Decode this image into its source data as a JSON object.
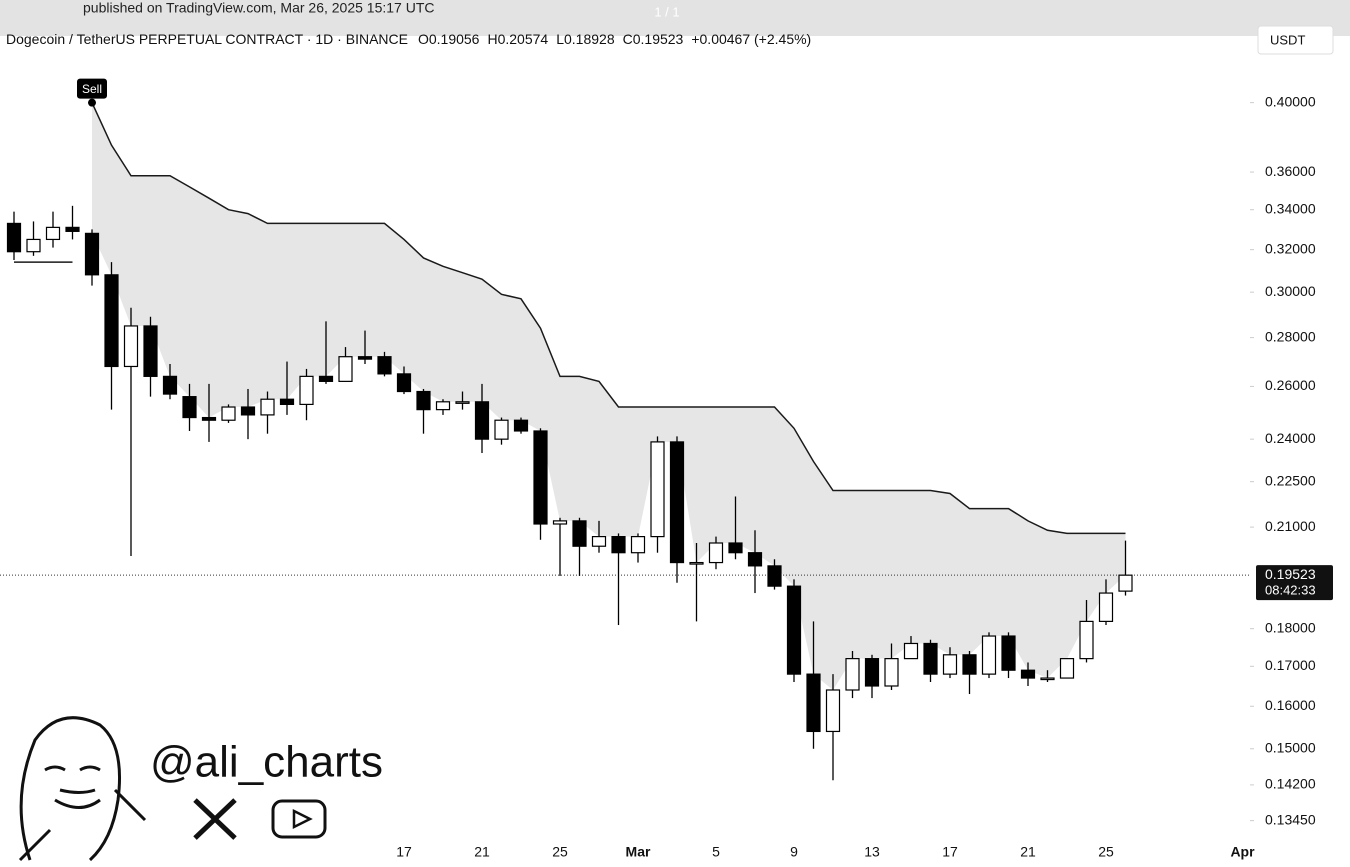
{
  "published": "published on TradingView.com, Mar 26, 2025 15:17 UTC",
  "page_counter": "1 / 1",
  "chart_data": {
    "type": "candlestick",
    "title": "Dogecoin / TetherUS PERPETUAL CONTRACT · 1D · BINANCE",
    "ohlc_letters": [
      "O",
      "H",
      "L",
      "C"
    ],
    "change": "+0.00467 (+2.45%)",
    "currency": "USDT",
    "countdown": "08:42:33",
    "signal_label": "Sell",
    "watermark": "@ali_charts",
    "log_scale": true,
    "categories": [
      null,
      null,
      null,
      null,
      null,
      null,
      null,
      null,
      null,
      null,
      null,
      null,
      null,
      null,
      null,
      null,
      null,
      null,
      null,
      null,
      "17",
      null,
      null,
      null,
      "21",
      null,
      null,
      null,
      "25",
      null,
      null,
      null,
      "Mar",
      null,
      null,
      null,
      "5",
      null,
      null,
      null,
      "9",
      null,
      null,
      null,
      "13",
      null,
      null,
      null,
      "17",
      null,
      null,
      null,
      "21",
      null,
      null,
      null,
      "25",
      null,
      null,
      null,
      null,
      null,
      null,
      "Apr"
    ],
    "open": [
      0.333,
      0.319,
      0.325,
      0.331,
      0.328,
      0.308,
      0.268,
      0.285,
      0.264,
      0.256,
      0.248,
      0.247,
      0.252,
      0.249,
      0.255,
      0.253,
      0.264,
      0.262,
      0.272,
      0.272,
      0.265,
      0.258,
      0.251,
      0.254,
      0.254,
      0.24,
      0.247,
      0.243,
      0.211,
      0.212,
      0.204,
      0.207,
      0.202,
      0.207,
      0.239,
      0.199,
      0.199,
      0.205,
      0.202,
      0.198,
      0.192,
      0.168,
      0.154,
      0.164,
      0.172,
      0.165,
      0.172,
      0.176,
      0.168,
      0.173,
      0.168,
      0.178,
      0.169,
      0.167,
      0.167,
      0.172,
      0.182,
      0.19056,
      null,
      null,
      null,
      null,
      null,
      null
    ],
    "high": [
      0.339,
      0.334,
      0.339,
      0.342,
      0.33,
      0.314,
      0.293,
      0.289,
      0.269,
      0.261,
      0.261,
      0.253,
      0.259,
      0.258,
      0.27,
      0.267,
      0.287,
      0.276,
      0.283,
      0.274,
      0.268,
      0.259,
      0.255,
      0.258,
      0.261,
      0.248,
      0.248,
      0.244,
      0.213,
      0.213,
      0.212,
      0.208,
      0.208,
      0.241,
      0.241,
      0.205,
      0.207,
      0.22,
      0.209,
      0.2,
      0.194,
      0.182,
      0.168,
      0.174,
      0.173,
      0.176,
      0.178,
      0.177,
      0.175,
      0.174,
      0.179,
      0.179,
      0.171,
      0.169,
      0.172,
      0.188,
      0.194,
      0.20574,
      null,
      null,
      null,
      null,
      null,
      null
    ],
    "low": [
      0.315,
      0.317,
      0.321,
      0.325,
      0.303,
      0.251,
      0.201,
      0.256,
      0.255,
      0.243,
      0.239,
      0.246,
      0.24,
      0.242,
      0.249,
      0.247,
      0.261,
      0.262,
      0.269,
      0.264,
      0.257,
      0.242,
      0.249,
      0.251,
      0.235,
      0.238,
      0.242,
      0.206,
      0.195,
      0.195,
      0.202,
      0.181,
      0.199,
      0.202,
      0.193,
      0.182,
      0.197,
      0.2,
      0.19,
      0.191,
      0.166,
      0.15,
      0.143,
      0.162,
      0.162,
      0.164,
      0.172,
      0.166,
      0.167,
      0.163,
      0.167,
      0.167,
      0.165,
      0.166,
      0.167,
      0.171,
      0.181,
      0.18928,
      null,
      null,
      null,
      null,
      null,
      null
    ],
    "close": [
      0.319,
      0.325,
      0.331,
      0.329,
      0.308,
      0.268,
      0.285,
      0.264,
      0.257,
      0.248,
      0.247,
      0.252,
      0.249,
      0.255,
      0.253,
      0.264,
      0.262,
      0.272,
      0.271,
      0.265,
      0.258,
      0.251,
      0.254,
      0.254,
      0.24,
      0.247,
      0.243,
      0.211,
      0.212,
      0.204,
      0.207,
      0.202,
      0.207,
      0.239,
      0.199,
      0.199,
      0.205,
      0.202,
      0.198,
      0.192,
      0.168,
      0.154,
      0.164,
      0.172,
      0.165,
      0.172,
      0.176,
      0.168,
      0.173,
      0.168,
      0.178,
      0.169,
      0.167,
      0.167,
      0.172,
      0.182,
      0.19,
      0.19523,
      null,
      null,
      null,
      null,
      null,
      null
    ],
    "support_line": [
      0.314,
      0.314,
      0.314,
      0.314,
      null,
      null,
      null,
      null,
      null,
      null,
      null,
      null,
      null,
      null,
      null,
      null,
      null,
      null,
      null,
      null,
      null,
      null,
      null,
      null,
      null,
      null,
      null,
      null,
      null,
      null,
      null,
      null,
      null,
      null,
      null,
      null,
      null,
      null,
      null,
      null,
      null,
      null,
      null,
      null,
      null,
      null,
      null,
      null,
      null,
      null,
      null,
      null,
      null,
      null,
      null,
      null,
      null,
      null,
      null,
      null,
      null,
      null,
      null,
      null
    ],
    "resistance_line": [
      null,
      null,
      null,
      null,
      0.4,
      0.375,
      0.358,
      0.358,
      0.358,
      0.352,
      0.346,
      0.34,
      0.338,
      0.333,
      0.333,
      0.333,
      0.333,
      0.333,
      0.333,
      0.333,
      0.325,
      0.316,
      0.312,
      0.309,
      0.306,
      0.299,
      0.297,
      0.284,
      0.264,
      0.264,
      0.262,
      0.252,
      0.252,
      0.252,
      0.252,
      0.252,
      0.252,
      0.252,
      0.252,
      0.252,
      0.244,
      0.232,
      0.222,
      0.222,
      0.222,
      0.222,
      0.222,
      0.222,
      0.221,
      0.216,
      0.216,
      0.216,
      0.212,
      0.209,
      0.208,
      0.208,
      0.208,
      0.208,
      null,
      null,
      null,
      null,
      null,
      null
    ],
    "up_color": "#ffffff",
    "down_color": "#000000",
    "line_color": "#1a1a1a",
    "fill_color": "#e6e6e6",
    "ylim": [
      0.131,
      0.43
    ],
    "yticks": [
      {
        "value": 0.4,
        "label": "0.40000"
      },
      {
        "value": 0.36,
        "label": "0.36000"
      },
      {
        "value": 0.34,
        "label": "0.34000"
      },
      {
        "value": 0.32,
        "label": "0.32000"
      },
      {
        "value": 0.3,
        "label": "0.30000"
      },
      {
        "value": 0.28,
        "label": "0.28000"
      },
      {
        "value": 0.26,
        "label": "0.26000"
      },
      {
        "value": 0.24,
        "label": "0.24000"
      },
      {
        "value": 0.225,
        "label": "0.22500"
      },
      {
        "value": 0.21,
        "label": "0.21000"
      },
      {
        "value": 0.18,
        "label": "0.18000"
      },
      {
        "value": 0.17,
        "label": "0.17000"
      },
      {
        "value": 0.16,
        "label": "0.16000"
      },
      {
        "value": 0.15,
        "label": "0.15000"
      },
      {
        "value": 0.142,
        "label": "0.14200"
      },
      {
        "value": 0.1345,
        "label": "0.13450"
      }
    ],
    "grid": false
  }
}
